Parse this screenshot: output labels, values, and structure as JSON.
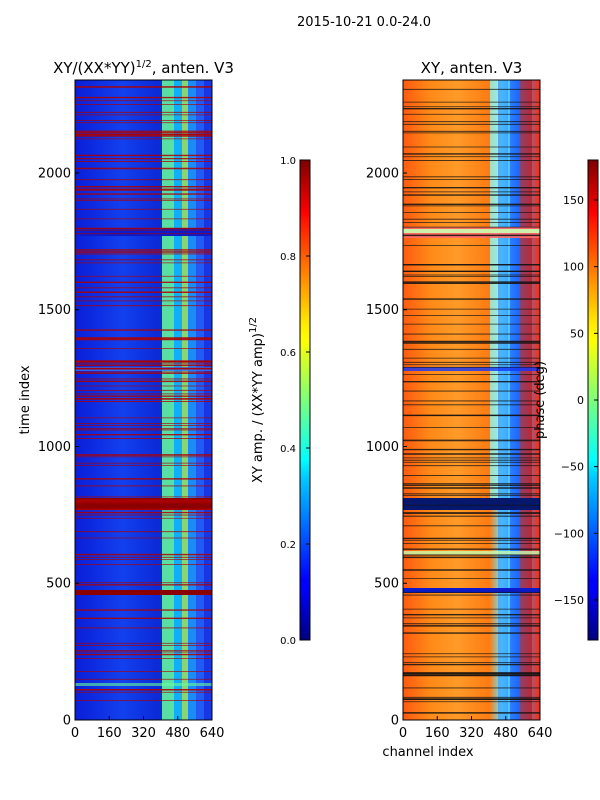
{
  "suptitle": "2015-10-21 0.0-24.0",
  "chart_data": [
    {
      "type": "heatmap",
      "title_main": "XY/(XX*YY)",
      "title_exp": "1/2",
      "title_suffix": ", anten. V3",
      "xlabel": "",
      "ylabel": "time index",
      "xlim": [
        0,
        640
      ],
      "ylim": [
        0,
        2340
      ],
      "xticks": [
        "0",
        "160",
        "320",
        "480",
        "640"
      ],
      "yticks": [
        "0",
        "500",
        "1000",
        "1500",
        "2000"
      ],
      "colorbar": {
        "label_main": "XY amp. / (XX*YY amp)",
        "label_exp": "1/2",
        "range": [
          0.0,
          1.0
        ],
        "ticks": [
          "0.0",
          "0.2",
          "0.4",
          "0.6",
          "0.8",
          "1.0"
        ],
        "colormap": "jet"
      }
    },
    {
      "type": "heatmap",
      "title_main": "XY, anten. V3",
      "xlabel": "channel index",
      "ylabel": "",
      "xlim": [
        0,
        640
      ],
      "ylim": [
        0,
        2340
      ],
      "xticks": [
        "0",
        "160",
        "320",
        "480",
        "640"
      ],
      "yticks": [
        "0",
        "500",
        "1000",
        "1500",
        "2000"
      ],
      "colorbar": {
        "label_main": "phase (deg)",
        "range": [
          -180,
          180
        ],
        "ticks": [
          "−150",
          "−100",
          "−50",
          "0",
          "50",
          "100",
          "150"
        ],
        "colormap": "jet"
      }
    }
  ]
}
